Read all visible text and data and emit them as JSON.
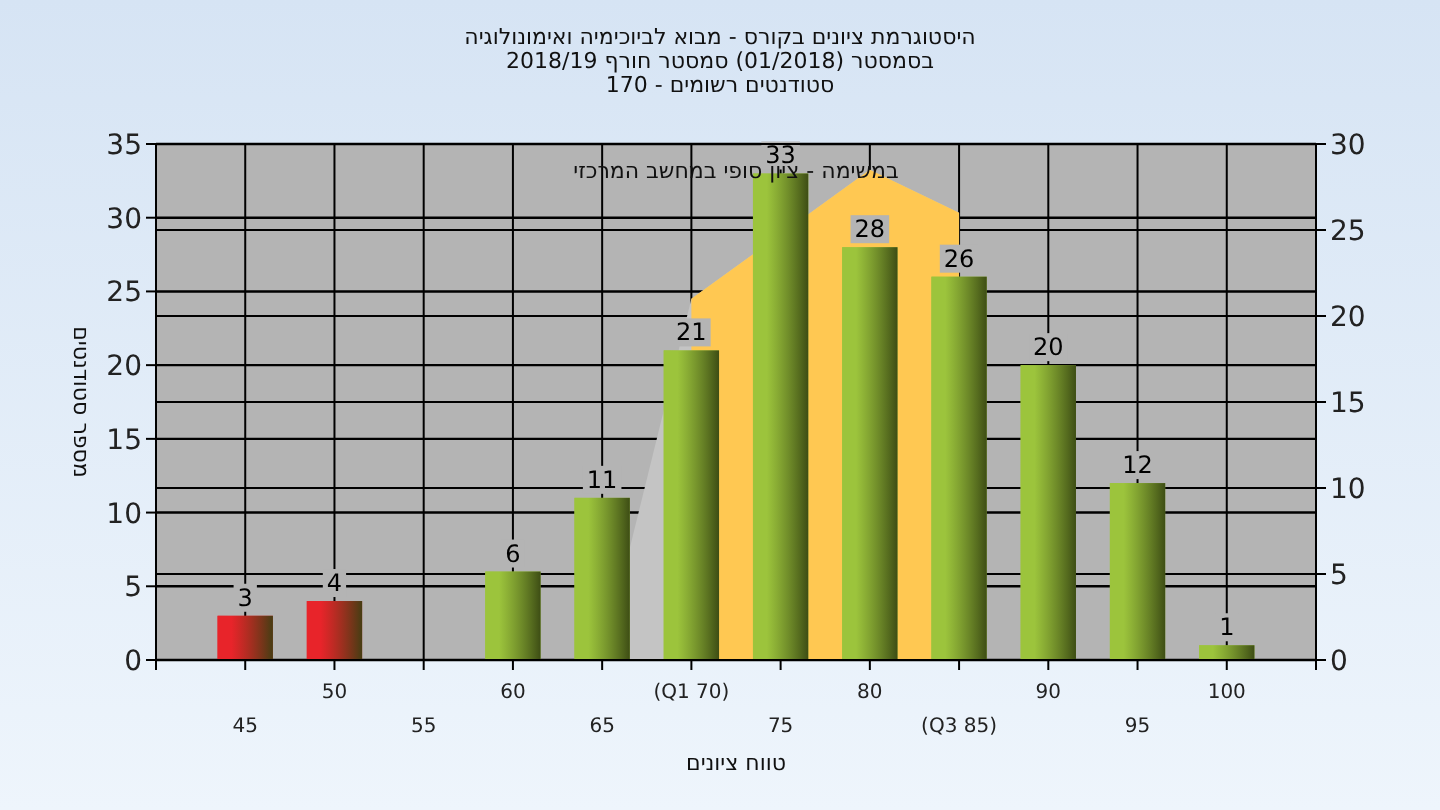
{
  "chart_data": {
    "type": "bar",
    "title": "היסטוגרמת ציונים בקורס - מבוא לביוכימיה ואימונולוגיה\nבסמסטר  (01/2018)  סמסטר חורף 2018/19\nסטודנטים רשומים - 170",
    "xlabel": "טווח ציונים",
    "ylabel": "מספר סטודנטים",
    "annotations": [
      "במשימה - ציון סופי במחשב המרכזי"
    ],
    "categories": [
      "45",
      "50",
      "55",
      "60",
      "65",
      "(Q1 70)",
      "75",
      "80",
      "(Q3 85)",
      "90",
      "95",
      "100"
    ],
    "series": [
      {
        "type": "area",
        "axis": "y2",
        "color": "#c4c4c4",
        "values": [
          null,
          null,
          null,
          null,
          0,
          21,
          null,
          28.5,
          26,
          null,
          null,
          null
        ]
      },
      {
        "type": "area",
        "axis": "y2",
        "color": "#ffc852",
        "values": [
          null,
          null,
          null,
          null,
          null,
          21,
          null,
          28.5,
          26,
          null,
          null,
          null
        ]
      },
      {
        "colors": [
          "#e8242a",
          "#e8242a",
          "#9cc43c",
          "#9cc43c",
          "#9cc43c",
          "#9cc43c",
          "#9cc43c",
          "#9cc43c",
          "#9cc43c",
          "#9cc43c",
          "#9cc43c",
          "#9cc43c"
        ],
        "values": [
          3,
          4,
          0,
          6,
          11,
          21,
          33,
          28,
          26,
          20,
          12,
          1
        ],
        "value_labels": [
          "3",
          "4",
          null,
          "6",
          "11",
          "21",
          "33",
          "28",
          "26",
          "20",
          "12",
          "1"
        ]
      }
    ],
    "ylim": [
      0,
      35
    ],
    "yticks": [
      0,
      5,
      10,
      15,
      20,
      25,
      30,
      35
    ],
    "y2lim": [
      0,
      30
    ],
    "y2ticks": [
      0,
      5,
      10,
      15,
      20,
      25,
      30
    ],
    "grid": true
  }
}
